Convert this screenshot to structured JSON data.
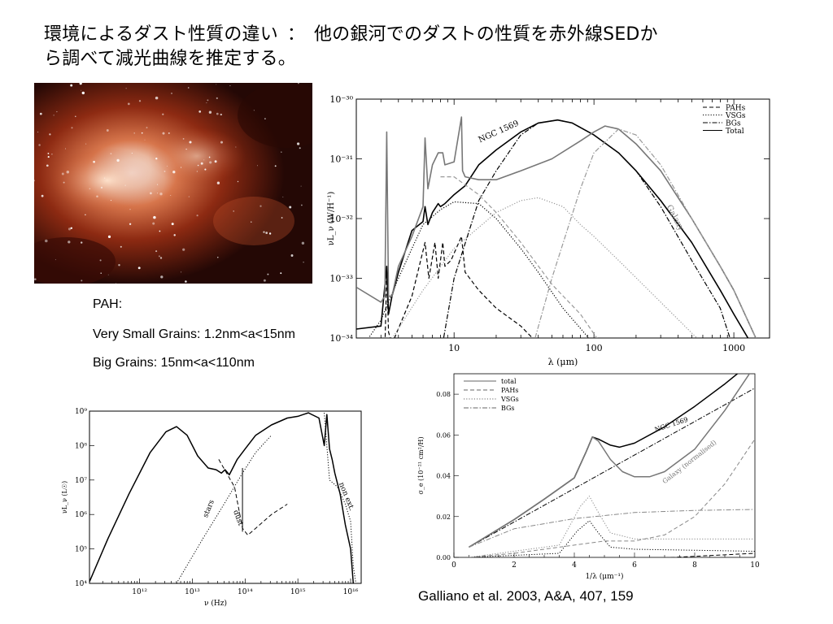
{
  "slide": {
    "title_left": "環境によるダスト性質の違い",
    "title_sep": "：",
    "title_right_1": "他の銀河でのダストの性質を赤外線SEDか",
    "title_right_2": "ら調べて減光曲線を推定する。",
    "grains": {
      "pah": "PAH:",
      "vsg": "Very Small Grains: 1.2nm<a<15nm",
      "bg": "Big Grains: 15nm<a<110nm"
    },
    "citation": "Galliano et al. 2003, A&A, 407, 159"
  },
  "chart_data": [
    {
      "id": "sed",
      "type": "line",
      "x_scale": "log",
      "y_scale": "log",
      "xlim": [
        2,
        1800
      ],
      "ylim": [
        1e-34,
        1e-30
      ],
      "xlabel": "λ (μm)",
      "ylabel": "νL_ν (W/H⁻¹)",
      "x_ticks": [
        10,
        100,
        1000
      ],
      "x_tick_labels": [
        "10",
        "100",
        "1000"
      ],
      "y_tick_labels": [
        "10⁻³⁴",
        "10⁻³³",
        "10⁻³²",
        "10⁻³¹",
        "10⁻³⁰"
      ],
      "legend": [
        "PAHs",
        "VSGs",
        "BGs",
        "Total"
      ],
      "legend_position": "top-right",
      "annotations": [
        "NGC 1569",
        "Galaxy"
      ],
      "series": [
        {
          "name": "Total",
          "style": "solid",
          "color": "#000000",
          "x": [
            2,
            3,
            3.3,
            3.4,
            3.6,
            4,
            5,
            6,
            6.2,
            6.5,
            7,
            7.7,
            8,
            8.6,
            10,
            11.3,
            12,
            15,
            20,
            30,
            40,
            55,
            70,
            100,
            150,
            200,
            300,
            500,
            800,
            1000,
            1500
          ],
          "y": [
            -33.85,
            -33.8,
            -32.8,
            -33.6,
            -33.3,
            -32.9,
            -32.2,
            -32.05,
            -31.8,
            -32.1,
            -31.9,
            -31.75,
            -31.8,
            -31.75,
            -31.6,
            -31.5,
            -31.45,
            -31.1,
            -30.85,
            -30.55,
            -30.4,
            -30.35,
            -30.4,
            -30.6,
            -30.9,
            -31.2,
            -31.7,
            -32.4,
            -33.2,
            -33.6,
            -34.3
          ]
        },
        {
          "name": "PAHs",
          "style": "dashed",
          "color": "#000000",
          "x": [
            3.2,
            3.3,
            3.4,
            3.6,
            5,
            6.2,
            6.6,
            7.3,
            7.7,
            8.3,
            8.6,
            9.5,
            11.3,
            12,
            15,
            20,
            30,
            40,
            50
          ],
          "y": [
            -34.2,
            -32.9,
            -33.9,
            -34.1,
            -33.3,
            -32.4,
            -33.0,
            -32.4,
            -33.0,
            -32.4,
            -32.8,
            -32.7,
            -32.3,
            -32.9,
            -33.2,
            -33.5,
            -33.8,
            -34.1,
            -34.3
          ]
        },
        {
          "name": "VSGs",
          "style": "dotted",
          "color": "#000000",
          "x": [
            2,
            3,
            4,
            5,
            6,
            8,
            10,
            15,
            20,
            30,
            40,
            60,
            100,
            200
          ],
          "y": [
            -34.3,
            -33.7,
            -33.0,
            -32.5,
            -32.1,
            -31.85,
            -31.72,
            -31.75,
            -32.0,
            -32.5,
            -32.9,
            -33.5,
            -34.1,
            -34.6
          ]
        },
        {
          "name": "BGs",
          "style": "dashdot",
          "color": "#000000",
          "x": [
            8,
            10,
            15,
            20,
            30,
            40,
            55,
            70,
            100,
            150,
            200,
            300,
            500,
            800,
            1000
          ],
          "y": [
            -34.3,
            -33.0,
            -31.7,
            -31.2,
            -30.6,
            -30.4,
            -30.35,
            -30.4,
            -30.6,
            -30.9,
            -31.2,
            -31.8,
            -32.7,
            -33.5,
            -34.2
          ]
        },
        {
          "name": "Galaxy",
          "style": "solid",
          "color": "#777777",
          "x": [
            2,
            3,
            3.2,
            3.3,
            3.4,
            3.6,
            4,
            5,
            6,
            6.2,
            6.5,
            7,
            7.7,
            8.3,
            8.6,
            10,
            11.3,
            11.5,
            12,
            15,
            20,
            30,
            50,
            80,
            100,
            120,
            150,
            200,
            300,
            500,
            800,
            1000,
            1800
          ],
          "y": [
            -33.15,
            -33.4,
            -33.3,
            -30.55,
            -33.3,
            -33.3,
            -32.8,
            -32.3,
            -31.8,
            -30.65,
            -31.5,
            -31.1,
            -30.9,
            -30.9,
            -31.1,
            -31.05,
            -30.3,
            -31.2,
            -31.3,
            -31.35,
            -31.35,
            -31.2,
            -31.0,
            -30.7,
            -30.55,
            -30.45,
            -30.5,
            -30.75,
            -31.2,
            -32.0,
            -32.8,
            -33.2,
            -34.5
          ]
        },
        {
          "name": "Galaxy VSG",
          "style": "dotted",
          "color": "#999999",
          "x": [
            3,
            6,
            10,
            20,
            30,
            40,
            60,
            80,
            100,
            150,
            300,
            600,
            1000,
            1500
          ],
          "y": [
            -34.3,
            -33.2,
            -32.5,
            -31.9,
            -31.7,
            -31.65,
            -31.8,
            -32.1,
            -32.3,
            -32.7,
            -33.4,
            -34.1,
            -34.5,
            -34.7
          ]
        },
        {
          "name": "Galaxy BG",
          "style": "dashdot",
          "color": "#999999",
          "x": [
            35,
            50,
            80,
            100,
            150,
            200,
            300,
            500,
            800,
            1000,
            1500
          ],
          "y": [
            -34.3,
            -33.0,
            -31.5,
            -30.9,
            -30.5,
            -30.6,
            -31.1,
            -32.0,
            -32.8,
            -33.2,
            -34.1
          ]
        },
        {
          "name": "Galaxy PAH",
          "style": "dashed",
          "color": "#999999",
          "x": [
            8,
            10,
            15,
            20,
            30,
            50,
            80,
            120
          ],
          "y": [
            -31.3,
            -31.3,
            -31.6,
            -31.9,
            -32.4,
            -33.1,
            -33.6,
            -34.2
          ]
        }
      ]
    },
    {
      "id": "stars_dust",
      "type": "line",
      "x_scale": "log",
      "y_scale": "log",
      "xlim": [
        100000000000.0,
        3e+16
      ],
      "ylim": [
        10000.0,
        1000000000.0
      ],
      "xlabel": "ν (Hz)",
      "ylabel": "νL_ν (L☉)",
      "x_tick_labels": [
        "10¹²",
        "10¹³",
        "10¹⁴",
        "10¹⁵",
        "10¹⁶"
      ],
      "y_tick_labels": [
        "10⁴",
        "10⁵",
        "10⁶",
        "10⁷",
        "10⁸",
        "10⁹"
      ],
      "annotations": [
        "stars",
        "dust",
        "non ext."
      ],
      "series": [
        {
          "name": "total",
          "style": "solid",
          "color": "#000000",
          "x": [
            11.05,
            11.4,
            11.8,
            12.2,
            12.5,
            12.7,
            12.9,
            13.1,
            13.3,
            13.45,
            13.55,
            13.62,
            13.7,
            13.85,
            14.0,
            14.2,
            14.5,
            14.8,
            15.0,
            15.1,
            15.2,
            15.4,
            15.5,
            15.55,
            15.6,
            15.65,
            15.7,
            15.8,
            15.9,
            16.0,
            16.05
          ],
          "y": [
            4.05,
            5.3,
            6.6,
            7.8,
            8.4,
            8.55,
            8.3,
            7.7,
            7.35,
            7.3,
            7.2,
            7.3,
            7.15,
            7.6,
            7.9,
            8.3,
            8.6,
            8.8,
            8.85,
            8.9,
            8.95,
            8.8,
            8.0,
            8.9,
            7.9,
            7.6,
            7.2,
            6.6,
            5.7,
            5.0,
            4.0
          ]
        },
        {
          "name": "stars",
          "style": "dotted",
          "color": "#000000",
          "x": [
            12.7,
            13.2,
            13.6,
            13.95,
            14.2,
            14.5
          ],
          "y": [
            4.0,
            5.3,
            6.3,
            7.2,
            7.8,
            8.3
          ]
        },
        {
          "name": "dust",
          "style": "dashed",
          "color": "#000000",
          "x": [
            13.5,
            13.8,
            13.95,
            14.05,
            14.2,
            14.5,
            14.8
          ],
          "y": [
            7.6,
            6.8,
            5.6,
            5.4,
            5.6,
            6.0,
            6.3
          ]
        },
        {
          "name": "non ext.",
          "style": "dotted",
          "color": "#000000",
          "x": [
            15.5,
            15.6,
            15.75,
            15.9,
            16.0,
            16.05,
            16.1
          ],
          "y": [
            8.95,
            7.0,
            6.8,
            6.3,
            5.8,
            4.5,
            4.0
          ]
        }
      ]
    },
    {
      "id": "extinction",
      "type": "line",
      "x_scale": "linear",
      "y_scale": "linear",
      "xlim": [
        0,
        10
      ],
      "ylim": [
        0,
        0.09
      ],
      "xlabel": "1/λ (μm⁻¹)",
      "ylabel": "σ_e (10⁻²¹ cm²/H)",
      "x_ticks": [
        0,
        2,
        4,
        6,
        8,
        10
      ],
      "y_ticks": [
        0,
        0.02,
        0.04,
        0.06,
        0.08
      ],
      "y_tick_labels": [
        "0.00",
        "0.02",
        "0.04",
        "0.06",
        "0.08"
      ],
      "legend": [
        "total",
        "PAHs",
        "VSGs",
        "BGs"
      ],
      "legend_position": "top-left",
      "annotations": [
        "NGC 1569",
        "Galaxy (normalised)"
      ],
      "series": [
        {
          "name": "NGC 1569 total",
          "style": "solid",
          "color": "#000000",
          "x": [
            0.5,
            1,
            2,
            3,
            4,
            4.4,
            4.6,
            4.8,
            5.2,
            5.5,
            6,
            7,
            8,
            9,
            10
          ],
          "y": [
            0.005,
            0.0095,
            0.0185,
            0.0285,
            0.039,
            0.052,
            0.059,
            0.058,
            0.055,
            0.054,
            0.056,
            0.064,
            0.074,
            0.085,
            0.097
          ]
        },
        {
          "name": "NGC 1569 BGs",
          "style": "dashdot",
          "color": "#000000",
          "x": [
            0.5,
            10
          ],
          "y": [
            0.005,
            0.083
          ]
        },
        {
          "name": "NGC 1569 VSGs",
          "style": "dotted",
          "color": "#000000",
          "x": [
            0.5,
            3.5,
            4.1,
            4.5,
            4.8,
            5.2,
            6,
            10
          ],
          "y": [
            0.0,
            0.002,
            0.013,
            0.018,
            0.012,
            0.005,
            0.004,
            0.003
          ]
        },
        {
          "name": "NGC 1569 PAHs",
          "style": "dashed",
          "color": "#000000",
          "x": [
            0.5,
            4,
            6,
            8,
            10
          ],
          "y": [
            0.0,
            -0.0005,
            -0.001,
            0.0005,
            0.002
          ]
        },
        {
          "name": "Galaxy total",
          "style": "solid",
          "color": "#777777",
          "x": [
            0.5,
            1,
            2,
            3,
            4,
            4.4,
            4.6,
            4.8,
            5.2,
            5.6,
            6,
            6.5,
            7,
            8,
            9,
            10
          ],
          "y": [
            0.005,
            0.0095,
            0.0185,
            0.0285,
            0.039,
            0.052,
            0.059,
            0.057,
            0.048,
            0.042,
            0.0395,
            0.0395,
            0.042,
            0.053,
            0.072,
            0.094
          ]
        },
        {
          "name": "Galaxy VSGs",
          "style": "dotted",
          "color": "#888888",
          "x": [
            0.5,
            3.5,
            4.2,
            4.5,
            4.8,
            5.2,
            6,
            10
          ],
          "y": [
            0.0,
            0.006,
            0.025,
            0.03,
            0.022,
            0.012,
            0.009,
            0.009
          ]
        },
        {
          "name": "Galaxy BGs",
          "style": "dashdot",
          "color": "#888888",
          "x": [
            0.5,
            2,
            4,
            6,
            8,
            10
          ],
          "y": [
            0.005,
            0.014,
            0.019,
            0.022,
            0.023,
            0.0235
          ]
        },
        {
          "name": "Galaxy PAHs",
          "style": "dashed",
          "color": "#888888",
          "x": [
            0.5,
            2,
            4,
            5,
            6,
            7,
            8,
            9,
            10
          ],
          "y": [
            0.0,
            0.002,
            0.006,
            0.008,
            0.008,
            0.011,
            0.02,
            0.036,
            0.058
          ]
        }
      ]
    }
  ]
}
